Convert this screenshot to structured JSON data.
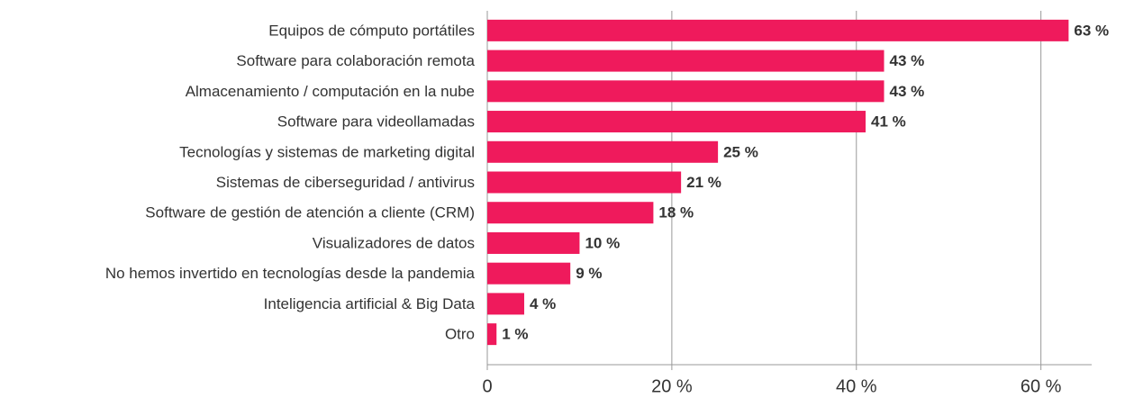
{
  "chart_data": {
    "type": "bar",
    "orientation": "horizontal",
    "categories": [
      "Equipos de cómputo portátiles",
      "Software para colaboración remota",
      "Almacenamiento / computación en la nube",
      "Software para videollamadas",
      "Tecnologías y sistemas de marketing digital",
      "Sistemas de ciberseguridad / antivirus",
      "Software de gestión de atención a cliente (CRM)",
      "Visualizadores de datos",
      "No hemos invertido en tecnologías desde la pandemia",
      "Inteligencia artificial & Big Data",
      "Otro"
    ],
    "values": [
      63,
      43,
      43,
      41,
      25,
      21,
      18,
      10,
      9,
      4,
      1
    ],
    "value_labels": [
      "63 %",
      "43 %",
      "43 %",
      "41 %",
      "25 %",
      "21 %",
      "18 %",
      "10 %",
      "9 %",
      "4 %",
      "1 %"
    ],
    "color": "#ef1a5c",
    "xlim": [
      0,
      65.5
    ],
    "xticks": [
      0,
      {
        "value": 20,
        "label": "20 %"
      },
      {
        "value": 40,
        "label": "40 %"
      },
      {
        "value": 60,
        "label": "60 %"
      }
    ],
    "grid": true
  }
}
